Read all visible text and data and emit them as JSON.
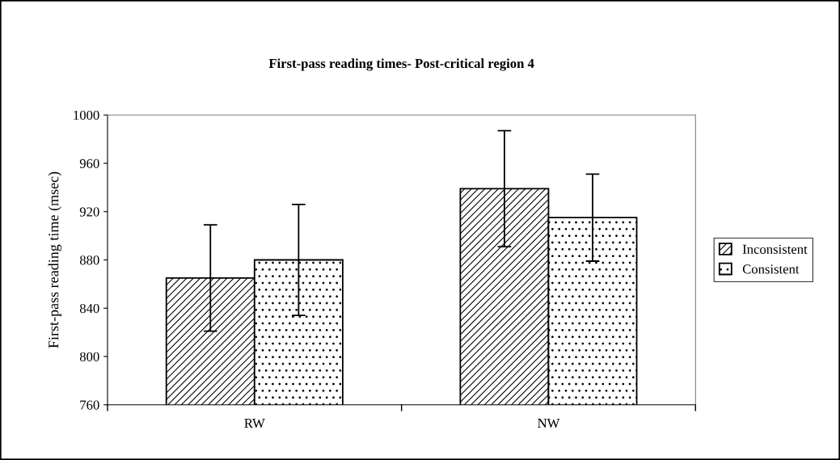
{
  "chart_data": {
    "type": "bar",
    "title": "First-pass reading times- Post-critical region 4",
    "ylabel": "First-pass reading time (msec)",
    "categories": [
      "RW",
      "NW"
    ],
    "series": [
      {
        "name": "Inconsistent",
        "color": "#000000",
        "values": [
          865,
          939
        ],
        "errors": [
          44,
          48
        ]
      },
      {
        "name": "Consistent",
        "color": "#000000",
        "values": [
          880,
          915
        ],
        "errors": [
          46,
          36
        ]
      }
    ],
    "ylim": [
      760,
      1000
    ],
    "yticks": [
      760,
      800,
      840,
      880,
      920,
      960,
      1000
    ],
    "grid": false,
    "legend": "right"
  }
}
